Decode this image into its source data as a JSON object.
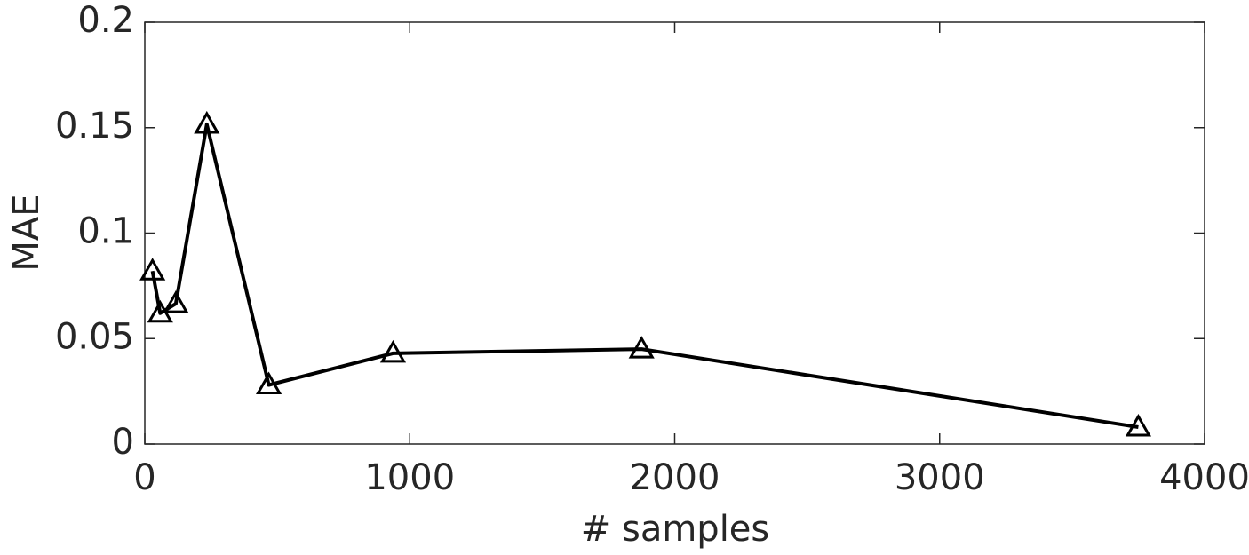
{
  "chart_data": {
    "type": "line",
    "x_label": "# samples",
    "y_label": "MAE",
    "x": [
      29,
      58,
      117,
      234,
      468,
      937,
      1875,
      3750
    ],
    "series": [
      {
        "name": "MAE",
        "color": "#000000",
        "values": [
          0.082,
          0.062,
          0.0665,
          0.1516,
          0.028,
          0.043,
          0.045,
          0.008
        ]
      }
    ],
    "xlim": [
      0,
      4000
    ],
    "xticks": [
      0,
      1000,
      2000,
      3000,
      4000
    ],
    "ylim": [
      0,
      0.2
    ],
    "yticks": [
      0,
      0.05,
      0.1,
      0.15,
      0.2
    ],
    "grid": false,
    "marker": "triangle"
  }
}
